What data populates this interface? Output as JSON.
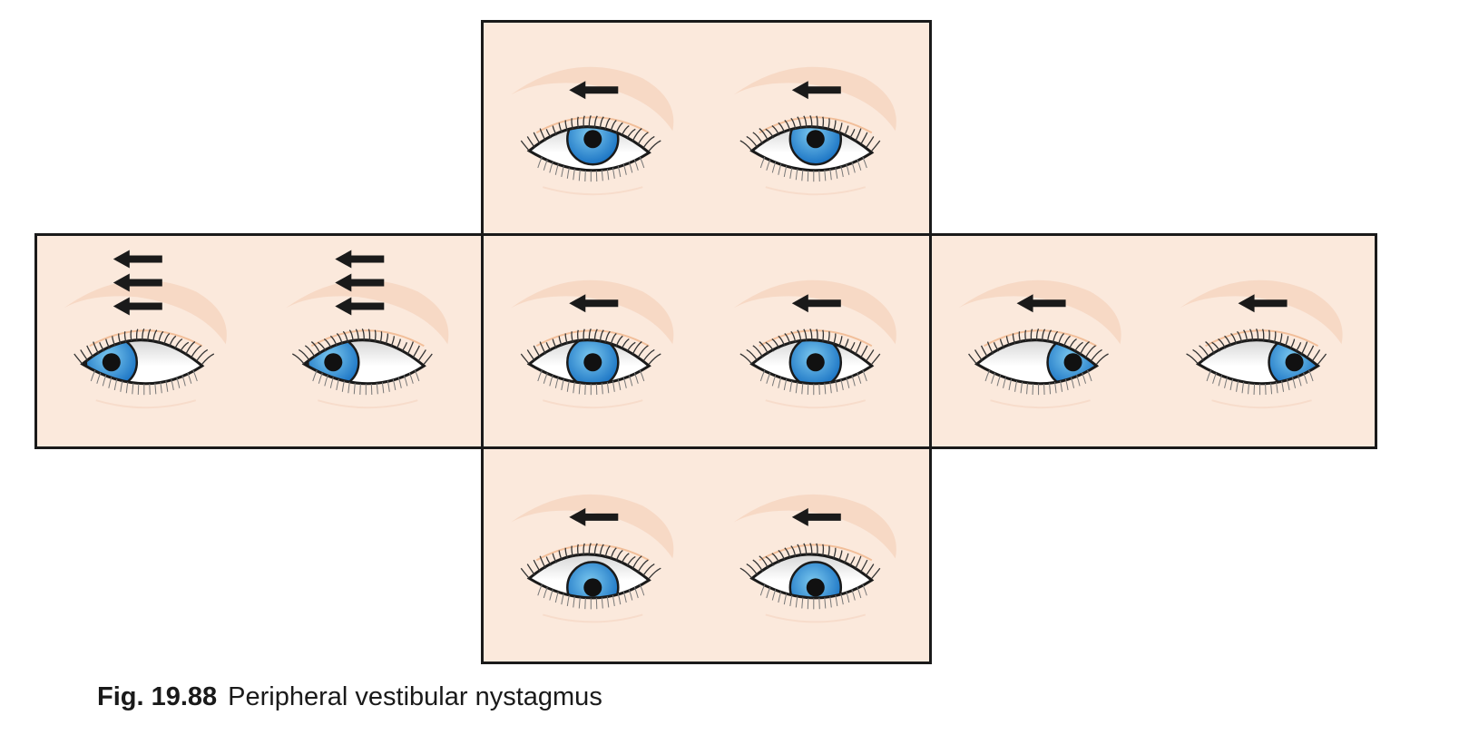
{
  "caption": {
    "label": "Fig. 19.88",
    "title": "Peripheral vestibular nystagmus"
  },
  "colors": {
    "panel_bg": "#fbe9dc",
    "brow": "#f6d3bd",
    "lid_line": "#f2bf9a",
    "iris_light": "#7cc9ef",
    "iris_dark": "#1b74c4",
    "outline": "#1a1a1a",
    "arrow": "#1a1a1a"
  },
  "panels": [
    {
      "id": "panel-up",
      "name": "gaze-up-panel",
      "gaze": "up",
      "arrow_count": 1,
      "arrow_direction": "left"
    },
    {
      "id": "panel-left",
      "name": "gaze-left-panel",
      "gaze": "left",
      "arrow_count": 3,
      "arrow_direction": "left"
    },
    {
      "id": "panel-center",
      "name": "gaze-center-panel",
      "gaze": "center",
      "arrow_count": 1,
      "arrow_direction": "left"
    },
    {
      "id": "panel-right",
      "name": "gaze-right-panel",
      "gaze": "right",
      "arrow_count": 1,
      "arrow_direction": "left"
    },
    {
      "id": "panel-down",
      "name": "gaze-down-panel",
      "gaze": "down",
      "arrow_count": 1,
      "arrow_direction": "left"
    }
  ]
}
